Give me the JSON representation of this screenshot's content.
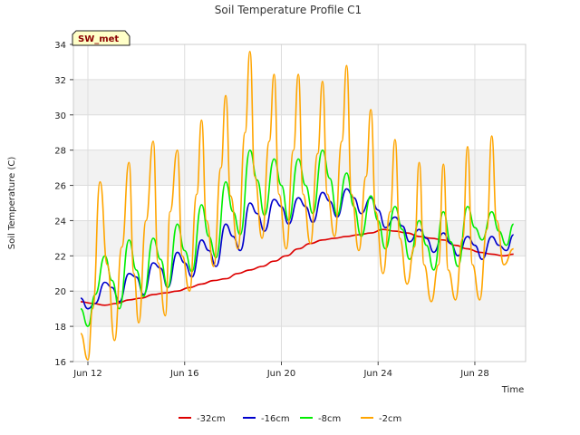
{
  "chart_data": {
    "type": "line",
    "title": "Soil Temperature Profile C1",
    "xlabel": "Time",
    "ylabel": "Soil Temperature (C)",
    "badge": "SW_met",
    "x_unit": "day of month, June",
    "xlim": [
      11.4,
      30.1
    ],
    "ylim": [
      16,
      34
    ],
    "y_ticks": [
      16,
      18,
      20,
      22,
      24,
      26,
      28,
      30,
      32,
      34
    ],
    "x_ticks": [
      {
        "value": 12,
        "label": "Jun 12"
      },
      {
        "value": 16,
        "label": "Jun 16"
      },
      {
        "value": 20,
        "label": "Jun 20"
      },
      {
        "value": 24,
        "label": "Jun 24"
      },
      {
        "value": 28,
        "label": "Jun 28"
      }
    ],
    "grid": true,
    "legend_position": "bottom-center",
    "series": [
      {
        "name": "-32cm",
        "color": "#dd0000",
        "x": [
          11.7,
          12.2,
          12.7,
          13.2,
          13.7,
          14.2,
          14.7,
          15.2,
          15.7,
          16.2,
          16.7,
          17.2,
          17.7,
          18.2,
          18.7,
          19.2,
          19.7,
          20.2,
          20.7,
          21.2,
          21.7,
          22.2,
          22.7,
          23.2,
          23.7,
          24.2,
          24.7,
          25.2,
          25.7,
          26.2,
          26.7,
          27.2,
          27.7,
          28.2,
          28.7,
          29.2,
          29.6
        ],
        "y": [
          19.4,
          19.3,
          19.2,
          19.3,
          19.5,
          19.6,
          19.8,
          19.9,
          20.0,
          20.2,
          20.4,
          20.6,
          20.7,
          21.0,
          21.2,
          21.4,
          21.7,
          22.0,
          22.4,
          22.7,
          22.9,
          23.0,
          23.1,
          23.2,
          23.3,
          23.5,
          23.4,
          23.3,
          23.1,
          23.0,
          22.9,
          22.6,
          22.4,
          22.2,
          22.1,
          22.0,
          22.1
        ]
      },
      {
        "name": "-16cm",
        "color": "#0000cc",
        "x": [
          11.7,
          12.0,
          12.3,
          12.7,
          13.0,
          13.3,
          13.7,
          14.0,
          14.3,
          14.7,
          15.0,
          15.3,
          15.7,
          16.0,
          16.3,
          16.7,
          17.0,
          17.3,
          17.7,
          18.0,
          18.3,
          18.7,
          19.0,
          19.3,
          19.7,
          20.0,
          20.3,
          20.7,
          21.0,
          21.3,
          21.7,
          22.0,
          22.3,
          22.7,
          23.0,
          23.3,
          23.7,
          24.0,
          24.3,
          24.7,
          25.0,
          25.3,
          25.7,
          26.0,
          26.3,
          26.7,
          27.0,
          27.3,
          27.7,
          28.0,
          28.3,
          28.7,
          29.0,
          29.3,
          29.6
        ],
        "y": [
          19.6,
          19.0,
          19.3,
          20.5,
          20.2,
          19.4,
          21.0,
          20.8,
          19.8,
          21.6,
          21.3,
          20.2,
          22.2,
          21.6,
          20.8,
          22.9,
          22.3,
          21.4,
          23.8,
          23.1,
          22.3,
          25.0,
          24.4,
          23.4,
          25.2,
          24.8,
          23.8,
          25.3,
          24.8,
          23.9,
          25.6,
          25.1,
          24.2,
          25.8,
          25.3,
          24.4,
          25.3,
          24.6,
          23.6,
          24.2,
          23.7,
          22.8,
          23.5,
          23.0,
          22.2,
          23.3,
          22.7,
          22.0,
          23.1,
          22.6,
          21.8,
          23.1,
          22.6,
          22.3,
          23.2
        ]
      },
      {
        "name": "-8cm",
        "color": "#00ee00",
        "x": [
          11.7,
          12.0,
          12.3,
          12.7,
          13.0,
          13.3,
          13.7,
          14.0,
          14.3,
          14.7,
          15.0,
          15.3,
          15.7,
          16.0,
          16.3,
          16.7,
          17.0,
          17.3,
          17.7,
          18.0,
          18.3,
          18.7,
          19.0,
          19.3,
          19.7,
          20.0,
          20.3,
          20.7,
          21.0,
          21.3,
          21.7,
          22.0,
          22.3,
          22.7,
          23.0,
          23.3,
          23.7,
          24.0,
          24.3,
          24.7,
          25.0,
          25.3,
          25.7,
          26.0,
          26.3,
          26.7,
          27.0,
          27.3,
          27.7,
          28.0,
          28.3,
          28.7,
          29.0,
          29.3,
          29.6
        ],
        "y": [
          19.0,
          18.0,
          19.8,
          22.0,
          20.6,
          19.0,
          22.9,
          21.2,
          19.7,
          23.0,
          21.8,
          20.2,
          23.8,
          22.3,
          21.1,
          24.9,
          23.1,
          21.9,
          26.2,
          24.5,
          23.2,
          28.0,
          26.3,
          24.3,
          27.5,
          26.0,
          24.0,
          27.5,
          26.0,
          24.4,
          28.0,
          26.4,
          24.3,
          26.7,
          24.8,
          23.1,
          25.4,
          24.0,
          22.4,
          24.8,
          23.5,
          21.8,
          24.0,
          22.6,
          21.2,
          24.5,
          22.8,
          21.4,
          24.8,
          23.6,
          22.9,
          24.5,
          23.4,
          22.6,
          23.8
        ]
      },
      {
        "name": "-2cm",
        "color": "#ffa500",
        "x": [
          11.7,
          12.0,
          12.2,
          12.5,
          12.8,
          13.1,
          13.4,
          13.7,
          13.9,
          14.1,
          14.4,
          14.7,
          14.9,
          15.2,
          15.4,
          15.7,
          15.9,
          16.2,
          16.5,
          16.7,
          16.9,
          17.2,
          17.5,
          17.7,
          17.9,
          18.2,
          18.5,
          18.7,
          18.9,
          19.2,
          19.5,
          19.7,
          19.9,
          20.2,
          20.5,
          20.7,
          20.9,
          21.2,
          21.5,
          21.7,
          21.9,
          22.2,
          22.5,
          22.7,
          22.9,
          23.2,
          23.5,
          23.7,
          23.9,
          24.2,
          24.5,
          24.7,
          24.9,
          25.2,
          25.5,
          25.7,
          25.9,
          26.2,
          26.5,
          26.7,
          26.9,
          27.2,
          27.5,
          27.7,
          27.9,
          28.2,
          28.5,
          28.7,
          28.9,
          29.2,
          29.6
        ],
        "y": [
          17.6,
          16.1,
          19.0,
          26.2,
          21.5,
          17.2,
          22.5,
          27.3,
          21.0,
          18.2,
          24.0,
          28.5,
          21.6,
          18.6,
          24.5,
          28.0,
          22.0,
          20.0,
          25.5,
          29.7,
          24.0,
          21.4,
          27.0,
          31.1,
          25.4,
          22.4,
          29.0,
          33.6,
          26.5,
          23.0,
          28.5,
          32.3,
          25.5,
          22.4,
          28.0,
          32.3,
          25.5,
          22.7,
          27.8,
          31.9,
          25.5,
          23.1,
          28.5,
          32.8,
          25.5,
          22.3,
          26.5,
          30.3,
          24.5,
          21.0,
          24.5,
          28.6,
          23.0,
          20.4,
          22.5,
          27.3,
          21.5,
          19.4,
          21.5,
          27.2,
          21.2,
          19.5,
          23.0,
          28.2,
          21.5,
          19.5,
          23.5,
          28.8,
          24.0,
          21.5,
          22.4
        ]
      }
    ]
  }
}
